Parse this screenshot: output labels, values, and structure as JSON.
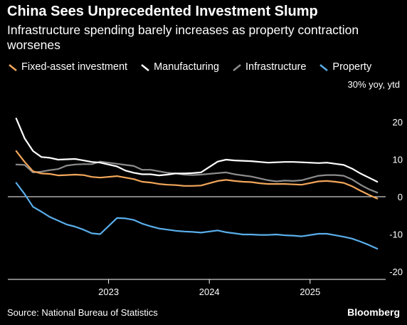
{
  "header": {
    "title": "China Sees Unprecedented Investment Slump",
    "subtitle": "Infrastructure spending barely increases as property contraction worsenes"
  },
  "legend": [
    {
      "label": "Fixed-asset investment",
      "color": "#f2a65a"
    },
    {
      "label": "Manufacturing",
      "color": "#ffffff"
    },
    {
      "label": "Infrastructure",
      "color": "#8c8c8c"
    },
    {
      "label": "Property",
      "color": "#5aaeea"
    }
  ],
  "footer": {
    "source": "Source: National Bureau of Statistics",
    "brand": "Bloomberg"
  },
  "chart_data": {
    "type": "line",
    "unit_label": "30% yoy, ytd",
    "x": [
      "2022-02",
      "2022-03",
      "2022-04",
      "2022-05",
      "2022-06",
      "2022-07",
      "2022-08",
      "2022-09",
      "2022-10",
      "2022-11",
      "2022-12",
      "2023-02",
      "2023-03",
      "2023-04",
      "2023-05",
      "2023-06",
      "2023-07",
      "2023-08",
      "2023-09",
      "2023-10",
      "2023-11",
      "2023-12",
      "2024-02",
      "2024-03",
      "2024-04",
      "2024-05",
      "2024-06",
      "2024-07",
      "2024-08",
      "2024-09",
      "2024-10",
      "2024-11",
      "2024-12",
      "2025-02",
      "2025-03",
      "2025-04",
      "2025-05",
      "2025-06",
      "2025-07",
      "2025-08",
      "2025-09"
    ],
    "xticks": [
      "2023",
      "2024",
      "2025"
    ],
    "ylim": [
      -22,
      30
    ],
    "yticks": [
      20,
      10,
      0,
      -10,
      -20
    ],
    "grid": false,
    "legend_position": "top",
    "series": [
      {
        "name": "Fixed-asset investment",
        "color": "#f2a65a",
        "values": [
          12.2,
          9.3,
          6.8,
          6.2,
          6.1,
          5.7,
          5.8,
          5.9,
          5.8,
          5.3,
          5.1,
          5.5,
          5.1,
          4.7,
          4.0,
          3.8,
          3.4,
          3.2,
          3.1,
          2.9,
          2.9,
          3.0,
          4.2,
          4.5,
          4.2,
          4.0,
          3.9,
          3.6,
          3.4,
          3.4,
          3.4,
          3.3,
          3.2,
          4.1,
          4.2,
          4.0,
          3.7,
          2.8,
          1.6,
          0.5,
          -0.5
        ]
      },
      {
        "name": "Manufacturing",
        "color": "#ffffff",
        "values": [
          20.9,
          15.6,
          12.2,
          10.6,
          10.4,
          9.9,
          10.0,
          10.1,
          9.7,
          9.3,
          9.1,
          8.1,
          7.0,
          6.4,
          6.0,
          6.0,
          5.7,
          5.9,
          6.2,
          6.2,
          6.3,
          6.5,
          9.4,
          9.9,
          9.7,
          9.6,
          9.5,
          9.3,
          9.1,
          9.2,
          9.3,
          9.3,
          9.2,
          9.0,
          9.1,
          8.8,
          8.5,
          7.5,
          6.2,
          5.1,
          4.0
        ]
      },
      {
        "name": "Infrastructure",
        "color": "#8c8c8c",
        "values": [
          8.6,
          8.5,
          6.5,
          6.7,
          7.1,
          7.4,
          8.3,
          8.6,
          8.7,
          8.7,
          9.4,
          8.8,
          8.5,
          8.2,
          7.2,
          7.2,
          6.8,
          6.4,
          6.2,
          5.9,
          5.8,
          5.9,
          6.3,
          6.5,
          6.0,
          5.7,
          5.4,
          4.9,
          4.4,
          4.1,
          4.3,
          4.2,
          4.4,
          5.6,
          5.8,
          5.8,
          5.6,
          4.6,
          3.2,
          2.0,
          1.1
        ]
      },
      {
        "name": "Property",
        "color": "#5aaeea",
        "values": [
          3.7,
          0.7,
          -2.7,
          -4.0,
          -5.4,
          -6.4,
          -7.4,
          -8.0,
          -8.8,
          -9.8,
          -10.0,
          -5.7,
          -5.8,
          -6.2,
          -7.2,
          -7.9,
          -8.5,
          -8.8,
          -9.1,
          -9.3,
          -9.4,
          -9.6,
          -9.0,
          -9.5,
          -9.8,
          -10.1,
          -10.1,
          -10.2,
          -10.2,
          -10.1,
          -10.3,
          -10.4,
          -10.6,
          -9.9,
          -9.9,
          -10.3,
          -10.7,
          -11.2,
          -12.0,
          -12.9,
          -13.9
        ]
      }
    ]
  }
}
